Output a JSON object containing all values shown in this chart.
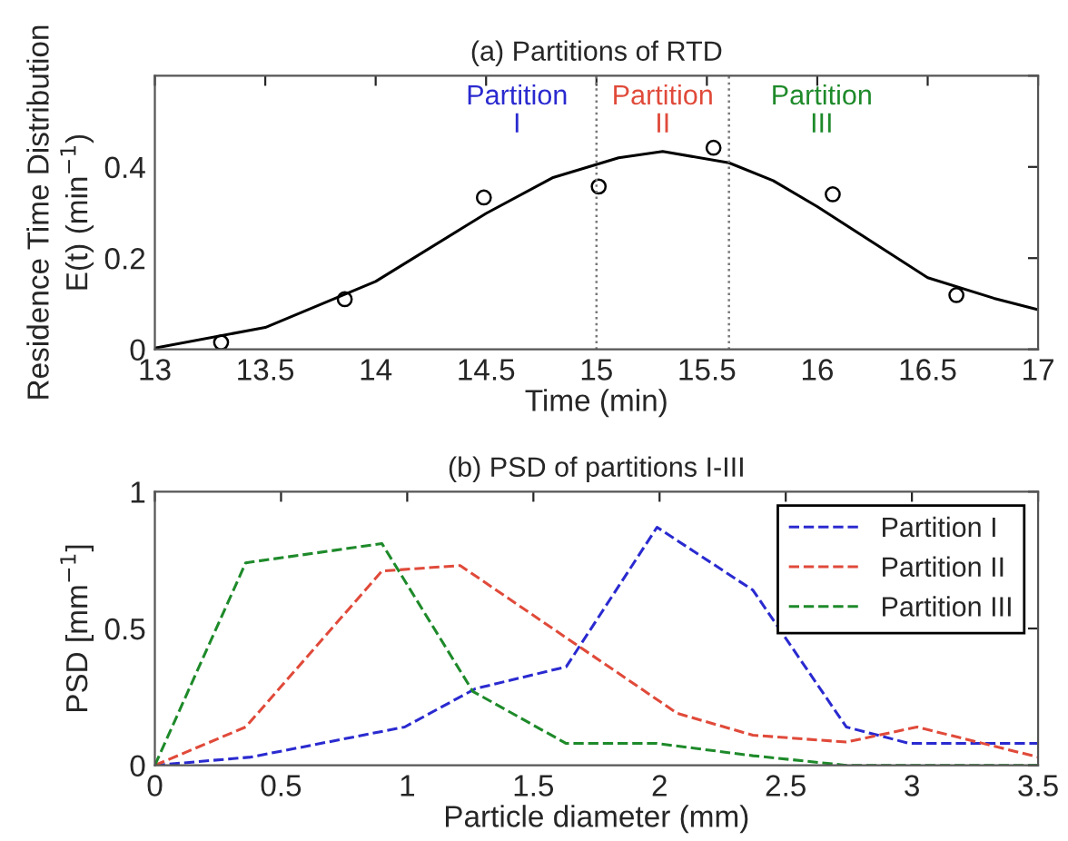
{
  "chart_data": [
    {
      "type": "line",
      "title": "(a) Partitions of RTD",
      "xlabel": "Time (min)",
      "ylabel": "Residence Time Distribution\nE(t) (min$^{−1}$)",
      "xlim": [
        13,
        17
      ],
      "xticks": [
        13,
        13.5,
        14,
        14.5,
        15,
        15.5,
        16,
        16.5,
        17
      ],
      "ylim": [
        0,
        0.6
      ],
      "yticks": [
        0,
        0.2,
        0.4,
        {
          "value": 0.6,
          "label": null
        }
      ],
      "series": [
        {
          "type": "line",
          "color": "#000000",
          "marker": "none",
          "line_style": "solid",
          "x": [
            13,
            13.5,
            14,
            14.5,
            14.8,
            15.1,
            15.3,
            15.6,
            15.8,
            16,
            16.5,
            16.8,
            17
          ],
          "values": [
            0.003,
            0.048,
            0.149,
            0.298,
            0.376,
            0.42,
            0.434,
            0.409,
            0.37,
            0.313,
            0.157,
            0.112,
            0.087
          ]
        },
        {
          "type": "scatter",
          "color": "#000000",
          "marker": "circle",
          "x": [
            13.3,
            13.86,
            14.49,
            15.01,
            15.53,
            16.07,
            16.63
          ],
          "values": [
            0.015,
            0.11,
            0.333,
            0.357,
            0.442,
            0.34,
            0.119
          ]
        }
      ],
      "ref_lines": [
        {
          "axis": "x",
          "value": 15,
          "color": "#777777",
          "line_style": "dotted"
        },
        {
          "axis": "x",
          "value": 15.6,
          "color": "#777777",
          "line_style": "dotted"
        }
      ],
      "annotations": [
        "Partition\nI",
        "Partition\nII",
        "Partition\nIII"
      ],
      "grid": false,
      "legend": false
    },
    {
      "type": "line",
      "title": "(b) PSD of partitions I-III",
      "xlabel": "Particle diameter (mm)",
      "ylabel": "PSD [mm$^{−1}$]",
      "xlim": [
        0,
        3.5
      ],
      "xticks": [
        0,
        0.5,
        1,
        1.5,
        2,
        2.5,
        3,
        3.5
      ],
      "ylim": [
        0,
        1
      ],
      "yticks": [
        0,
        0.5,
        1
      ],
      "line_style": "dashed",
      "marker": "none",
      "grid": false,
      "legend": "top right",
      "series": [
        {
          "name": "Partition I",
          "color": "#2a2ad0",
          "x": [
            0,
            0.38,
            0.99,
            1.27,
            1.63,
            1.99,
            2.37,
            2.74,
            2.99,
            3.5
          ],
          "values": [
            0,
            0.03,
            0.14,
            0.28,
            0.36,
            0.87,
            0.64,
            0.14,
            0.08,
            0.08
          ]
        },
        {
          "name": "Partition II",
          "color": "#e04a3a",
          "x": [
            0,
            0.36,
            0.9,
            1.21,
            2.07,
            2.37,
            2.74,
            3.02,
            3.5
          ],
          "values": [
            0,
            0.14,
            0.71,
            0.73,
            0.19,
            0.11,
            0.085,
            0.14,
            0.03
          ]
        },
        {
          "name": "Partition III",
          "color": "#1e8a2a",
          "x": [
            0,
            0.36,
            0.9,
            1.26,
            1.63,
            1.99,
            2.37,
            2.74,
            3.5
          ],
          "values": [
            0,
            0.74,
            0.81,
            0.27,
            0.08,
            0.08,
            0.035,
            0,
            0
          ]
        }
      ]
    }
  ]
}
